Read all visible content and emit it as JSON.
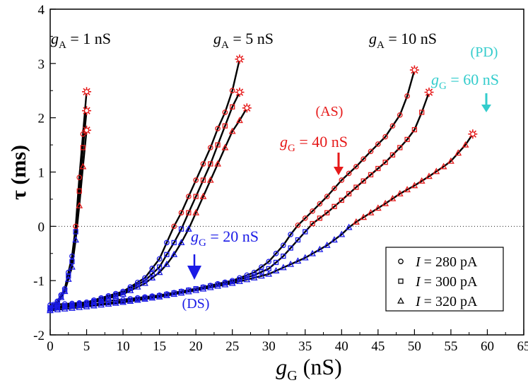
{
  "chart_data": {
    "type": "line",
    "xlabel_main": "g",
    "xlabel_sub": "G",
    "xlabel_unit": " (nS)",
    "ylabel": "τ (ms)",
    "xlim": [
      0,
      65
    ],
    "ylim": [
      -2,
      4
    ],
    "xticks": [
      0,
      5,
      10,
      15,
      20,
      25,
      30,
      35,
      40,
      45,
      50,
      55,
      60,
      65
    ],
    "yticks": [
      -2,
      -1,
      0,
      1,
      2,
      3,
      4
    ],
    "zero_line": true,
    "colors": {
      "ds": "#1a1ae6",
      "as": "#e61a1a",
      "pd": "#33cccc",
      "curve": "#000000",
      "legend_marker": "#000000"
    },
    "groups": [
      {
        "gA_value": "1 nS",
        "curves": [
          {
            "I": 280,
            "marker": "circle",
            "end": 5.0,
            "points": [
              [
                0,
                -1.5
              ],
              [
                1,
                -1.38
              ],
              [
                2,
                -1.15
              ],
              [
                3,
                -0.55
              ],
              [
                3.5,
                0.0
              ],
              [
                4,
                0.9
              ],
              [
                4.5,
                1.7
              ],
              [
                5,
                2.48
              ]
            ]
          },
          {
            "I": 300,
            "marker": "square",
            "end": 5.0,
            "points": [
              [
                0,
                -1.52
              ],
              [
                1,
                -1.4
              ],
              [
                2,
                -1.18
              ],
              [
                3,
                -0.65
              ],
              [
                3.5,
                -0.1
              ],
              [
                4,
                0.65
              ],
              [
                4.5,
                1.45
              ],
              [
                5,
                2.13
              ]
            ]
          },
          {
            "I": 320,
            "marker": "triangle",
            "end": 5.0,
            "points": [
              [
                0,
                -1.55
              ],
              [
                1,
                -1.42
              ],
              [
                2,
                -1.2
              ],
              [
                3,
                -0.75
              ],
              [
                3.5,
                -0.25
              ],
              [
                4,
                0.38
              ],
              [
                4.5,
                1.1
              ],
              [
                5,
                1.77
              ]
            ]
          }
        ]
      },
      {
        "gA_value": "5 nS",
        "curves": [
          {
            "I": 280,
            "marker": "circle",
            "end": 26.0,
            "points": [
              [
                0,
                -1.5
              ],
              [
                5,
                -1.4
              ],
              [
                10,
                -1.2
              ],
              [
                13,
                -0.95
              ],
              [
                15,
                -0.6
              ],
              [
                16,
                -0.3
              ],
              [
                17,
                0.0
              ],
              [
                18,
                0.25
              ],
              [
                19,
                0.55
              ],
              [
                20,
                0.85
              ],
              [
                21,
                1.15
              ],
              [
                22,
                1.45
              ],
              [
                23,
                1.8
              ],
              [
                24,
                2.1
              ],
              [
                25,
                2.5
              ],
              [
                26,
                3.08
              ]
            ]
          },
          {
            "I": 300,
            "marker": "square",
            "end": 26.0,
            "points": [
              [
                0,
                -1.5
              ],
              [
                5,
                -1.42
              ],
              [
                10,
                -1.22
              ],
              [
                13,
                -1.0
              ],
              [
                15,
                -0.75
              ],
              [
                16,
                -0.52
              ],
              [
                17,
                -0.3
              ],
              [
                18,
                -0.05
              ],
              [
                19,
                0.25
              ],
              [
                20,
                0.55
              ],
              [
                21,
                0.85
              ],
              [
                22,
                1.15
              ],
              [
                23,
                1.5
              ],
              [
                24,
                1.85
              ],
              [
                25,
                2.2
              ],
              [
                26,
                2.47
              ]
            ]
          },
          {
            "I": 320,
            "marker": "triangle",
            "end": 27.0,
            "points": [
              [
                0,
                -1.52
              ],
              [
                5,
                -1.44
              ],
              [
                10,
                -1.25
              ],
              [
                13,
                -1.05
              ],
              [
                15,
                -0.85
              ],
              [
                16,
                -0.7
              ],
              [
                17,
                -0.52
              ],
              [
                18,
                -0.3
              ],
              [
                19,
                -0.05
              ],
              [
                20,
                0.25
              ],
              [
                21,
                0.55
              ],
              [
                22,
                0.85
              ],
              [
                23,
                1.15
              ],
              [
                24,
                1.45
              ],
              [
                25,
                1.75
              ],
              [
                26,
                1.95
              ],
              [
                27,
                2.18
              ]
            ]
          }
        ]
      },
      {
        "gA_value": "10 nS",
        "curves": [
          {
            "I": 280,
            "marker": "circle",
            "end": 50.0,
            "points": [
              [
                0,
                -1.45
              ],
              [
                5,
                -1.4
              ],
              [
                10,
                -1.35
              ],
              [
                15,
                -1.27
              ],
              [
                20,
                -1.15
              ],
              [
                25,
                -1.0
              ],
              [
                28,
                -0.85
              ],
              [
                30,
                -0.65
              ],
              [
                32,
                -0.35
              ],
              [
                33,
                -0.15
              ],
              [
                34,
                0.02
              ],
              [
                35,
                0.15
              ],
              [
                36,
                0.28
              ],
              [
                38,
                0.55
              ],
              [
                40,
                0.85
              ],
              [
                42,
                1.1
              ],
              [
                44,
                1.38
              ],
              [
                46,
                1.65
              ],
              [
                47,
                1.85
              ],
              [
                48,
                2.05
              ],
              [
                49,
                2.4
              ],
              [
                50,
                2.88
              ]
            ]
          },
          {
            "I": 300,
            "marker": "square",
            "end": 52.0,
            "points": [
              [
                0,
                -1.5
              ],
              [
                5,
                -1.45
              ],
              [
                10,
                -1.38
              ],
              [
                15,
                -1.28
              ],
              [
                20,
                -1.15
              ],
              [
                25,
                -1.02
              ],
              [
                28,
                -0.9
              ],
              [
                30,
                -0.78
              ],
              [
                32,
                -0.55
              ],
              [
                34,
                -0.25
              ],
              [
                35,
                -0.1
              ],
              [
                36,
                0.05
              ],
              [
                38,
                0.25
              ],
              [
                40,
                0.48
              ],
              [
                42,
                0.72
              ],
              [
                44,
                0.95
              ],
              [
                46,
                1.18
              ],
              [
                48,
                1.45
              ],
              [
                49,
                1.6
              ],
              [
                50,
                1.78
              ],
              [
                51,
                2.1
              ],
              [
                52,
                2.47
              ]
            ]
          },
          {
            "I": 320,
            "marker": "triangle",
            "end": 58.0,
            "points": [
              [
                0,
                -1.55
              ],
              [
                5,
                -1.48
              ],
              [
                10,
                -1.4
              ],
              [
                15,
                -1.3
              ],
              [
                20,
                -1.18
              ],
              [
                25,
                -1.05
              ],
              [
                30,
                -0.88
              ],
              [
                35,
                -0.58
              ],
              [
                38,
                -0.35
              ],
              [
                40,
                -0.15
              ],
              [
                41,
                -0.02
              ],
              [
                42,
                0.08
              ],
              [
                44,
                0.25
              ],
              [
                46,
                0.42
              ],
              [
                48,
                0.6
              ],
              [
                50,
                0.75
              ],
              [
                52,
                0.92
              ],
              [
                54,
                1.1
              ],
              [
                55,
                1.2
              ],
              [
                56,
                1.35
              ],
              [
                57,
                1.5
              ],
              [
                58,
                1.7
              ]
            ]
          }
        ]
      }
    ],
    "annotations": {
      "ds_text": "(DS)",
      "as_text": "(AS)",
      "pd_text": "(PD)",
      "g_letter": "g",
      "gG_sub": "G",
      "gA_sub": "A",
      "eq_text": " = ",
      "ds_value": "20 nS",
      "as_value": "40 nS",
      "pd_value": "60 nS"
    },
    "legend": [
      {
        "marker": "circle",
        "label_var": "I",
        "label_value": " = 280 pA"
      },
      {
        "marker": "square",
        "label_var": "I",
        "label_value": " = 300 pA"
      },
      {
        "marker": "triangle",
        "label_var": "I",
        "label_value": " = 320 pA"
      }
    ]
  }
}
